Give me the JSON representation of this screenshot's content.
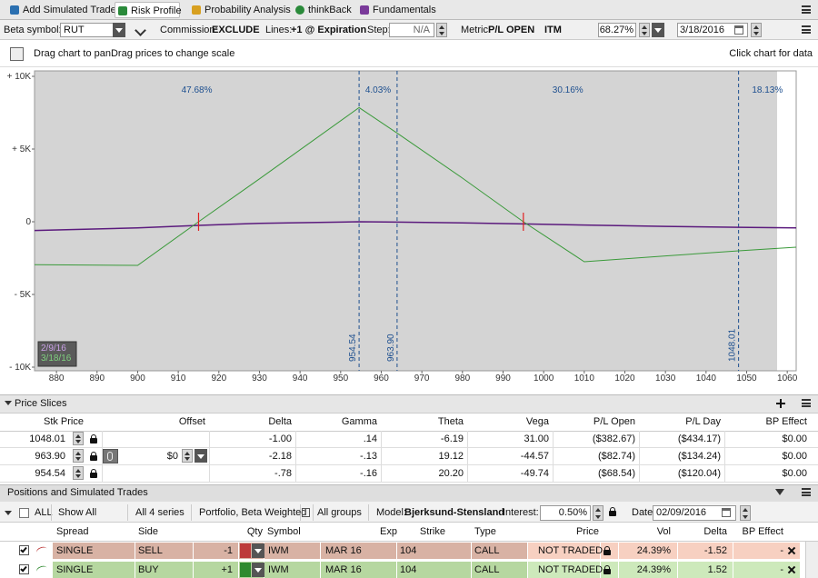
{
  "tabs": [
    "Add Simulated Trades",
    "Risk Profile",
    "Probability Analysis",
    "thinkBack",
    "Fundamentals"
  ],
  "settings": {
    "beta_label": "Beta symbol:",
    "beta_value": "RUT",
    "commission_label": "Commission:",
    "commission_value": "EXCLUDE",
    "lines_label": "Lines:",
    "lines_value": "+1 @ Expiration",
    "step_label": "Step:",
    "step_value": "N/A",
    "metric_label": "Metric:",
    "metric_value": "P/L OPEN",
    "itm_label": "ITM",
    "itm_value": "68.27%",
    "date_value": "3/18/2016"
  },
  "hint": {
    "left": "Drag chart to panDrag prices to change scale",
    "right": "Click chart for data"
  },
  "chart_data": {
    "type": "line",
    "xlim": [
      874.6,
      1062.2
    ],
    "ylim": [
      -10000,
      10000
    ],
    "xticks": [
      880,
      890,
      900,
      910,
      920,
      930,
      940,
      950,
      960,
      970,
      980,
      990,
      1000,
      1010,
      1020,
      1030,
      1040,
      1050,
      1060
    ],
    "yticks": [
      {
        "value": -10000,
        "label": "- 10K"
      },
      {
        "value": -5000,
        "label": "- 5K"
      },
      0,
      {
        "value": 5000,
        "label": "+ 5K"
      },
      {
        "value": 10000,
        "label": "+ 10K"
      }
    ],
    "x": [
      874.6,
      900,
      915,
      930,
      954.54,
      963.9,
      980,
      995,
      1010,
      1030,
      1048.01,
      1062.2
    ],
    "series": [
      {
        "name": "2/9/16",
        "color": "#5b1a7d",
        "values": [
          -600,
          -420,
          -250,
          -110,
          0,
          -20,
          -80,
          -150,
          -230,
          -320,
          -380,
          -420
        ]
      },
      {
        "name": "3/18/16",
        "color": "#3a9a3a",
        "values": [
          -2950,
          -3000,
          0,
          2950,
          7850,
          6100,
          3000,
          0,
          -2750,
          -2350,
          -2000,
          -1750
        ]
      }
    ],
    "breakevens": [
      915,
      995
    ],
    "slices": [
      954.54,
      {
        "value": 963.9,
        "label": "963.90"
      },
      1048.01
    ],
    "zone_labels": [
      "47.68%",
      "4.03%",
      "30.16%",
      "18.13%"
    ]
  },
  "price_slices": {
    "title": "Price Slices",
    "columns": [
      "Stk Price",
      "Offset",
      "Delta",
      "Gamma",
      "Theta",
      "Vega",
      "P/L Open",
      "P/L Day",
      "BP Effect"
    ],
    "rows": [
      [
        "1048.01",
        null,
        "-1.00",
        ".14",
        "-6.19",
        "31.00",
        "($382.67)",
        "($434.17)",
        "$0.00"
      ],
      [
        "963.90",
        "$0",
        "-2.18",
        "-.13",
        "19.12",
        "-44.57",
        "($82.74)",
        "($134.24)",
        "$0.00"
      ],
      [
        "954.54",
        null,
        "-.78",
        "-.16",
        "20.20",
        "-49.74",
        "($68.54)",
        "($120.04)",
        "$0.00"
      ]
    ]
  },
  "positions": {
    "title": "Positions and Simulated Trades",
    "toolbar": {
      "all": "ALL",
      "show": "Show All",
      "series": "All 4 series",
      "portfolio": "Portfolio, Beta Weighted",
      "groups": "All groups",
      "model_label": "Model:",
      "model_value": "Bjerksund-Stensland",
      "interest_label": "Interest:",
      "interest_value": "0.50%",
      "date_label": "Date:",
      "date_value": "02/09/2016"
    },
    "columns": [
      "Spread",
      "Side",
      "Qty",
      "Symbol",
      "Exp",
      "Strike",
      "Type",
      "Price",
      "Vol",
      "Delta",
      "BP Effect"
    ],
    "rows": [
      [
        "SINGLE",
        "SELL",
        "-1",
        "IWM",
        "MAR 16",
        "104",
        "CALL",
        "NOT TRADED",
        "24.39%",
        "-1.52",
        "-"
      ],
      [
        "SINGLE",
        "BUY",
        "+1",
        "IWM",
        "MAR 16",
        "104",
        "CALL",
        "NOT TRADED",
        "24.39%",
        "1.52",
        "-"
      ]
    ]
  }
}
